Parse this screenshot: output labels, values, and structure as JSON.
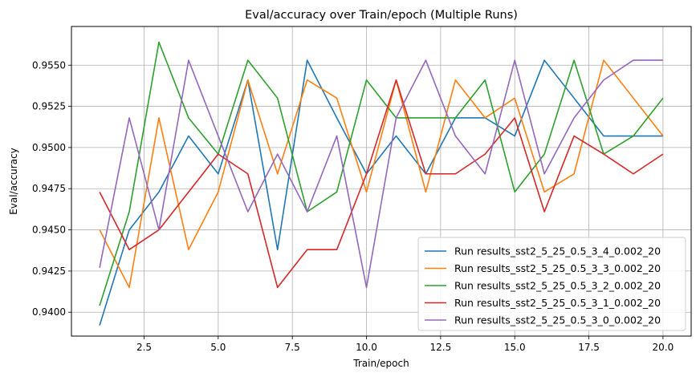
{
  "chart_data": {
    "type": "line",
    "title": "Eval/accuracy over Train/epoch (Multiple Runs)",
    "xlabel": "Train/epoch",
    "ylabel": "Eval/accuracy",
    "xlim": [
      0.05,
      20.95
    ],
    "ylim": [
      0.93855,
      0.95735
    ],
    "xticks": [
      2.5,
      5.0,
      7.5,
      10.0,
      12.5,
      15.0,
      17.5,
      20.0
    ],
    "xtick_labels": [
      "2.5",
      "5.0",
      "7.5",
      "10.0",
      "12.5",
      "15.0",
      "17.5",
      "20.0"
    ],
    "yticks": [
      0.94,
      0.9425,
      0.945,
      0.9475,
      0.95,
      0.9525,
      0.955
    ],
    "ytick_labels": [
      "0.9400",
      "0.9425",
      "0.9450",
      "0.9475",
      "0.9500",
      "0.9525",
      "0.9550"
    ],
    "grid": true,
    "legend_position": "lower-right",
    "x": [
      1,
      2,
      3,
      4,
      5,
      6,
      7,
      8,
      9,
      10,
      11,
      12,
      13,
      14,
      15,
      16,
      17,
      18,
      19,
      20
    ],
    "series": [
      {
        "name": "Run results_sst2_5_25_0.5_3_4_0.002_20",
        "color": "#1f77b4",
        "values": [
          0.9392,
          0.945,
          0.9473,
          0.9507,
          0.9484,
          0.9541,
          0.9438,
          0.9553,
          0.9518,
          0.9484,
          0.9507,
          0.9484,
          0.9518,
          0.9518,
          0.9507,
          0.9553,
          0.953,
          0.9507,
          0.9507,
          0.9507
        ]
      },
      {
        "name": "Run results_sst2_5_25_0.5_3_3_0.002_20",
        "color": "#ff7f0e",
        "values": [
          0.945,
          0.9415,
          0.9518,
          0.9438,
          0.9473,
          0.9541,
          0.9484,
          0.9541,
          0.953,
          0.9473,
          0.9541,
          0.9473,
          0.9541,
          0.9518,
          0.953,
          0.9473,
          0.9484,
          0.9553,
          0.953,
          0.9507
        ]
      },
      {
        "name": "Run results_sst2_5_25_0.5_3_2_0.002_20",
        "color": "#2ca02c",
        "values": [
          0.9404,
          0.9461,
          0.9564,
          0.9518,
          0.9496,
          0.9553,
          0.953,
          0.9461,
          0.9473,
          0.9541,
          0.9518,
          0.9518,
          0.9518,
          0.9541,
          0.9473,
          0.9496,
          0.9553,
          0.9496,
          0.9507,
          0.953
        ]
      },
      {
        "name": "Run results_sst2_5_25_0.5_3_1_0.002_20",
        "color": "#d62728",
        "values": [
          0.9473,
          0.9438,
          0.945,
          0.9473,
          0.9496,
          0.9484,
          0.9415,
          0.9438,
          0.9438,
          0.9484,
          0.9541,
          0.9484,
          0.9484,
          0.9496,
          0.9518,
          0.9461,
          0.9507,
          0.9496,
          0.9484,
          0.9496
        ]
      },
      {
        "name": "Run results_sst2_5_25_0.5_3_0_0.002_20",
        "color": "#9467bd",
        "values": [
          0.9427,
          0.9518,
          0.945,
          0.9553,
          0.9507,
          0.9461,
          0.9496,
          0.9461,
          0.9507,
          0.9415,
          0.9518,
          0.9553,
          0.9507,
          0.9484,
          0.9553,
          0.9484,
          0.9518,
          0.9541,
          0.9553,
          0.9553
        ]
      }
    ]
  }
}
